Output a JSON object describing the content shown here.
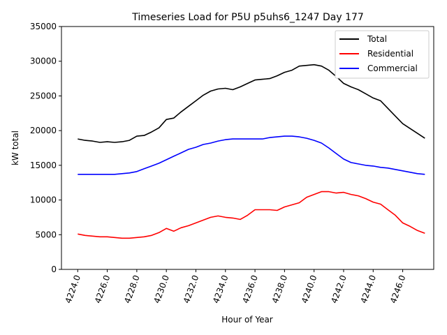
{
  "chart_data": {
    "type": "line",
    "title": "Timeseries Load for P5U p5uhs6_1247  Day 177",
    "xlabel": "Hour of Year",
    "ylabel": "kW total",
    "xlim": [
      4222.9,
      4248.1
    ],
    "ylim": [
      0,
      35000
    ],
    "x_ticks": [
      4224,
      4226,
      4228,
      4230,
      4232,
      4234,
      4236,
      4238,
      4240,
      4242,
      4244,
      4246
    ],
    "x_tick_labels": [
      "4224.0",
      "4226.0",
      "4228.0",
      "4230.0",
      "4232.0",
      "4234.0",
      "4236.0",
      "4238.0",
      "4240.0",
      "4242.0",
      "4244.0",
      "4246.0"
    ],
    "y_ticks": [
      0,
      5000,
      10000,
      15000,
      20000,
      25000,
      30000,
      35000
    ],
    "y_tick_labels": [
      "0",
      "5000",
      "10000",
      "15000",
      "20000",
      "25000",
      "30000",
      "35000"
    ],
    "legend_position": "top-right",
    "series": [
      {
        "name": "Total",
        "color": "#000000",
        "x": [
          4224,
          4224.5,
          4225,
          4225.5,
          4226,
          4226.5,
          4227,
          4227.5,
          4228,
          4228.5,
          4229,
          4229.5,
          4230,
          4230.5,
          4231,
          4231.5,
          4232,
          4232.5,
          4233,
          4233.5,
          4234,
          4234.5,
          4235,
          4235.5,
          4236,
          4236.5,
          4237,
          4237.5,
          4238,
          4238.5,
          4239,
          4239.5,
          4240,
          4240.5,
          4241,
          4241.5,
          4242,
          4242.5,
          4243,
          4243.5,
          4244,
          4244.5,
          4245,
          4245.5,
          4246,
          4246.5,
          4247,
          4247.5
        ],
        "values": [
          18800,
          18600,
          18500,
          18300,
          18400,
          18300,
          18400,
          18600,
          19200,
          19300,
          19800,
          20400,
          21600,
          21800,
          22700,
          23500,
          24300,
          25100,
          25700,
          26000,
          26100,
          25900,
          26300,
          26800,
          27300,
          27400,
          27500,
          27900,
          28400,
          28700,
          29300,
          29400,
          29500,
          29300,
          28700,
          27800,
          26800,
          26300,
          25900,
          25300,
          24700,
          24300,
          23200,
          22100,
          21000,
          20300,
          19600,
          18900
        ]
      },
      {
        "name": "Residential",
        "color": "#ff0000",
        "x": [
          4224,
          4224.5,
          4225,
          4225.5,
          4226,
          4226.5,
          4227,
          4227.5,
          4228,
          4228.5,
          4229,
          4229.5,
          4230,
          4230.5,
          4231,
          4231.5,
          4232,
          4232.5,
          4233,
          4233.5,
          4234,
          4234.5,
          4235,
          4235.5,
          4236,
          4236.5,
          4237,
          4237.5,
          4238,
          4238.5,
          4239,
          4239.5,
          4240,
          4240.5,
          4241,
          4241.5,
          4242,
          4242.5,
          4243,
          4243.5,
          4244,
          4244.5,
          4245,
          4245.5,
          4246,
          4246.5,
          4247,
          4247.5
        ],
        "values": [
          5100,
          4900,
          4800,
          4700,
          4700,
          4600,
          4500,
          4500,
          4600,
          4700,
          4900,
          5300,
          5900,
          5500,
          6000,
          6300,
          6700,
          7100,
          7500,
          7700,
          7500,
          7400,
          7200,
          7800,
          8600,
          8600,
          8600,
          8500,
          9000,
          9300,
          9600,
          10400,
          10800,
          11200,
          11200,
          11000,
          11100,
          10800,
          10600,
          10200,
          9700,
          9400,
          8600,
          7800,
          6700,
          6200,
          5600,
          5200
        ]
      },
      {
        "name": "Commercial",
        "color": "#0000ff",
        "x": [
          4224,
          4224.5,
          4225,
          4225.5,
          4226,
          4226.5,
          4227,
          4227.5,
          4228,
          4228.5,
          4229,
          4229.5,
          4230,
          4230.5,
          4231,
          4231.5,
          4232,
          4232.5,
          4233,
          4233.5,
          4234,
          4234.5,
          4235,
          4235.5,
          4236,
          4236.5,
          4237,
          4237.5,
          4238,
          4238.5,
          4239,
          4239.5,
          4240,
          4240.5,
          4241,
          4241.5,
          4242,
          4242.5,
          4243,
          4243.5,
          4244,
          4244.5,
          4245,
          4245.5,
          4246,
          4246.5,
          4247,
          4247.5
        ],
        "values": [
          13700,
          13700,
          13700,
          13700,
          13700,
          13700,
          13800,
          13900,
          14100,
          14500,
          14900,
          15300,
          15800,
          16300,
          16800,
          17300,
          17600,
          18000,
          18200,
          18500,
          18700,
          18800,
          18800,
          18800,
          18800,
          18800,
          19000,
          19100,
          19200,
          19200,
          19100,
          18900,
          18600,
          18200,
          17500,
          16700,
          15900,
          15400,
          15200,
          15000,
          14900,
          14700,
          14600,
          14400,
          14200,
          14000,
          13800,
          13700
        ]
      }
    ]
  }
}
